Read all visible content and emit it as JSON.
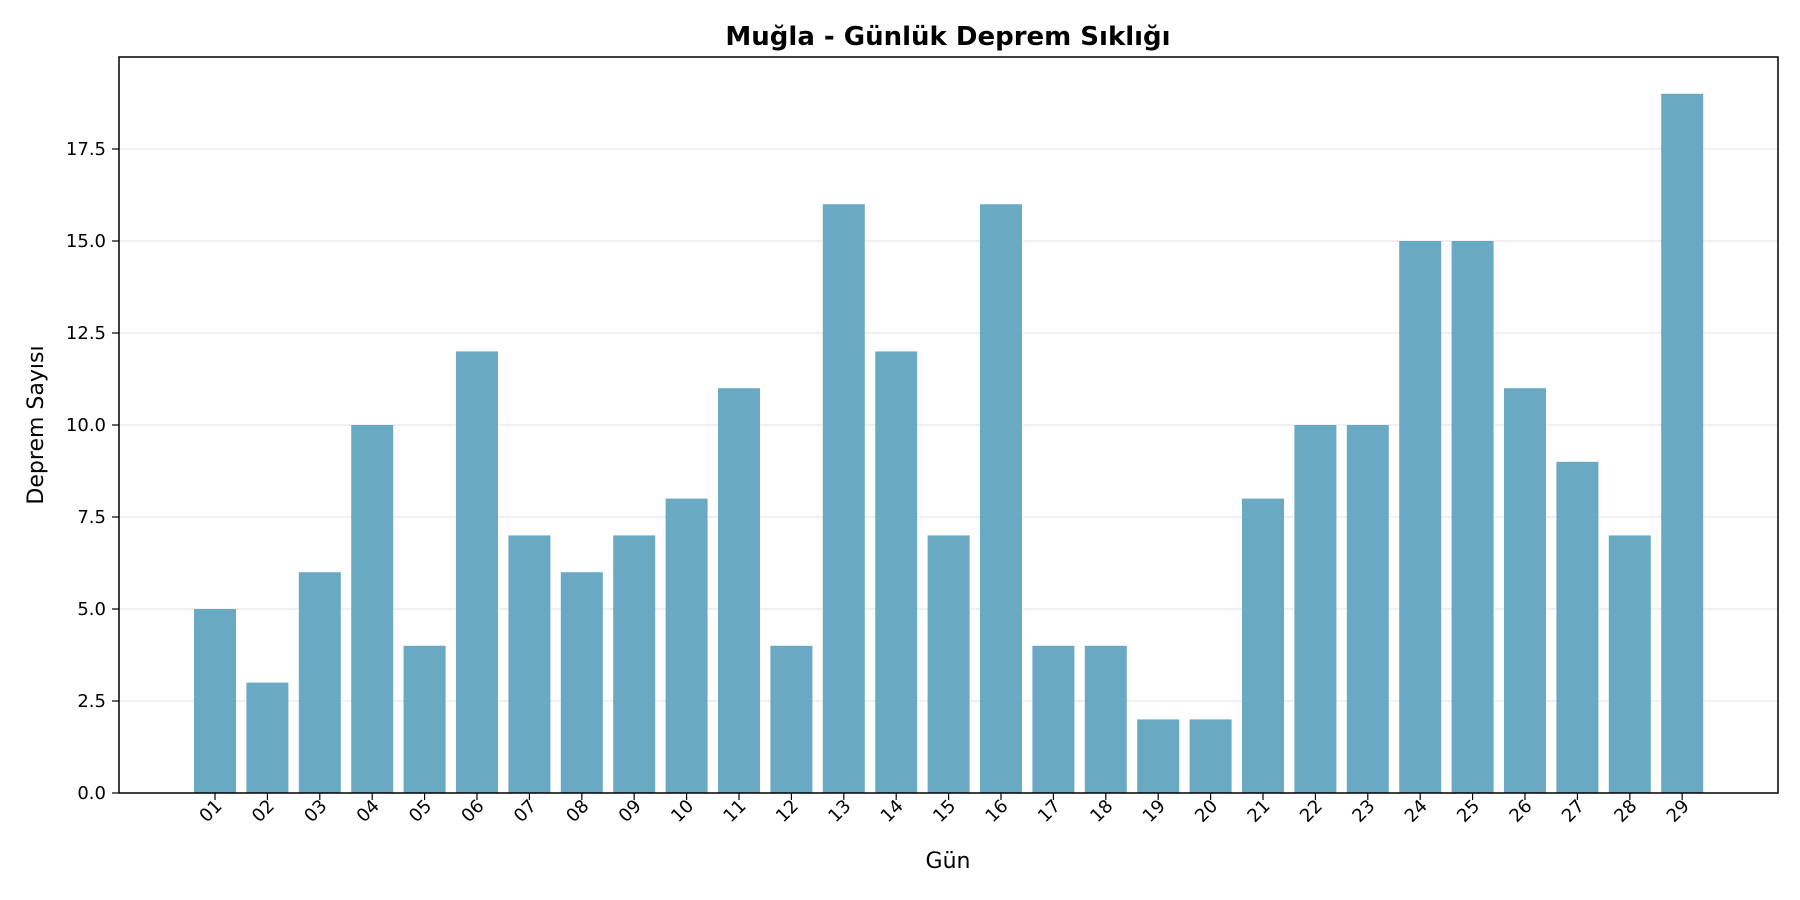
{
  "chart_data": {
    "type": "bar",
    "title": "Muğla - Günlük Deprem Sıklığı",
    "xlabel": "Gün",
    "ylabel": "Deprem Sayısı",
    "categories": [
      "01",
      "02",
      "03",
      "04",
      "05",
      "06",
      "07",
      "08",
      "09",
      "10",
      "11",
      "12",
      "13",
      "14",
      "15",
      "16",
      "17",
      "18",
      "19",
      "20",
      "21",
      "22",
      "23",
      "24",
      "25",
      "26",
      "27",
      "28",
      "29"
    ],
    "values": [
      5,
      3,
      6,
      10,
      4,
      12,
      7,
      6,
      7,
      8,
      11,
      4,
      16,
      12,
      7,
      16,
      4,
      4,
      2,
      2,
      8,
      10,
      10,
      15,
      15,
      11,
      9,
      7,
      19
    ],
    "ylim": [
      0,
      20
    ],
    "yticks": [
      0.0,
      2.5,
      5.0,
      7.5,
      10.0,
      12.5,
      15.0,
      17.5
    ],
    "ytick_labels": [
      "0.0",
      "2.5",
      "5.0",
      "7.5",
      "10.0",
      "12.5",
      "15.0",
      "17.5"
    ],
    "grid": "horizontal",
    "bar_color": "#6aa9c4"
  }
}
